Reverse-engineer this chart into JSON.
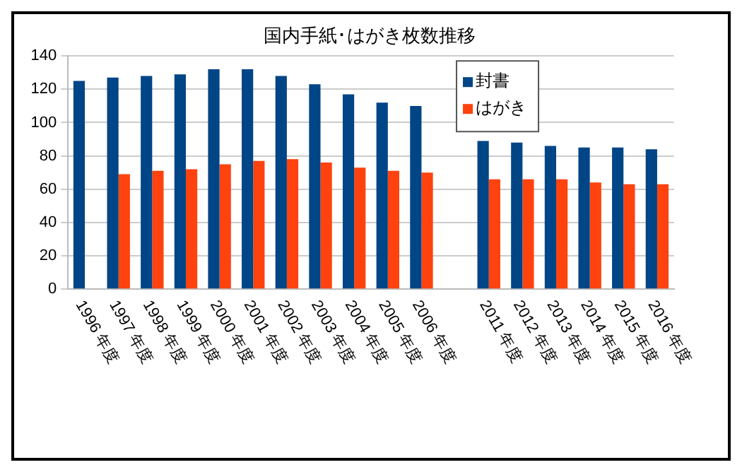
{
  "chart_data": {
    "type": "bar",
    "title": "国内手紙･はがき枚数推移",
    "categories": [
      "1996 年度",
      "1997 年度",
      "1998 年度",
      "1999 年度",
      "2000 年度",
      "2001 年度",
      "2002 年度",
      "2003 年度",
      "2004 年度",
      "2005 年度",
      "2006 年度",
      null,
      "2011 年度",
      "2012 年度",
      "2013 年度",
      "2014 年度",
      "2015 年度",
      "2016 年度"
    ],
    "series": [
      {
        "name": "封書",
        "color": "#004586",
        "values": [
          125,
          127,
          128,
          129,
          132,
          132,
          128,
          123,
          117,
          112,
          110,
          null,
          89,
          88,
          86,
          85,
          85,
          84
        ]
      },
      {
        "name": "はがき",
        "color": "#ff420e",
        "values": [
          null,
          69,
          71,
          72,
          75,
          77,
          78,
          76,
          73,
          71,
          70,
          null,
          66,
          66,
          66,
          64,
          63,
          63
        ]
      }
    ],
    "ylim": [
      0,
      140
    ],
    "yticks": [
      0,
      20,
      40,
      60,
      80,
      100,
      120,
      140
    ],
    "grid": "y",
    "legend": "top right"
  }
}
